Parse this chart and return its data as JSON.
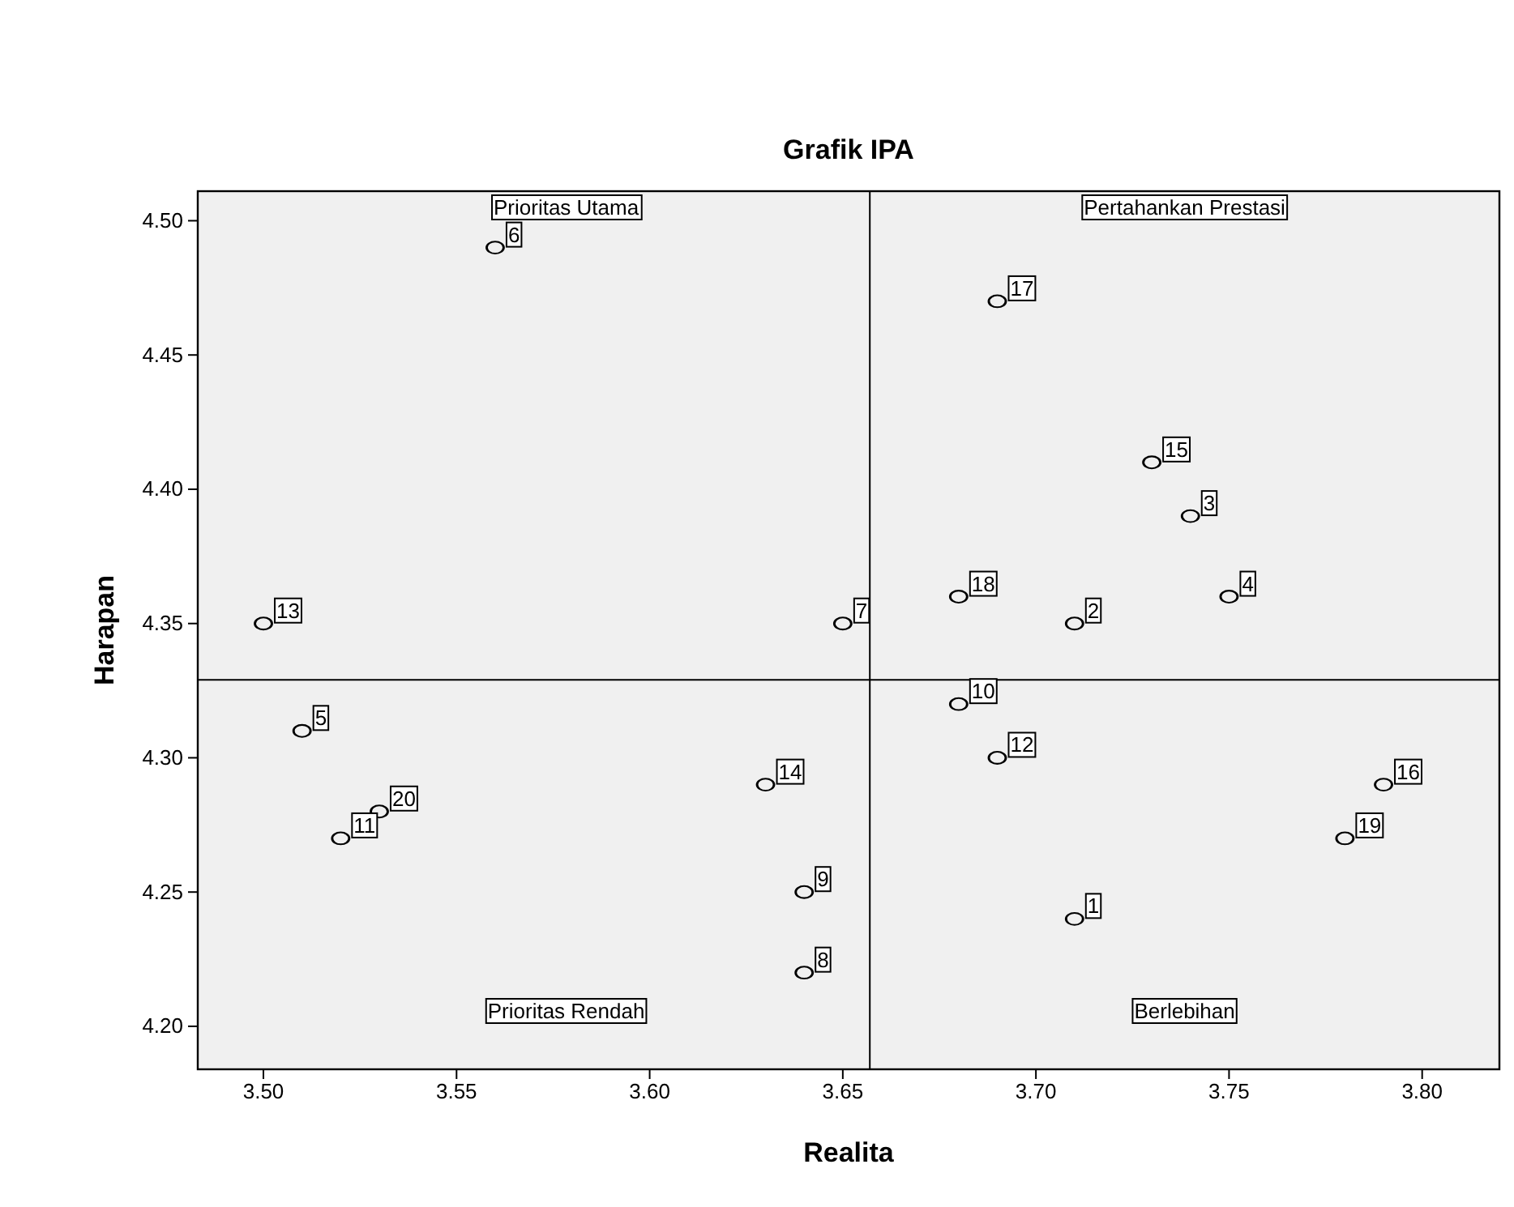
{
  "chart_data": {
    "type": "scatter",
    "title": "Grafik IPA",
    "xlabel": "Realita",
    "ylabel": "Harapan",
    "xlim": [
      3.483,
      3.82
    ],
    "ylim": [
      4.184,
      4.511
    ],
    "xticks": [
      {
        "value": 3.5,
        "label": "3.50"
      },
      {
        "value": 3.55,
        "label": "3.55"
      },
      {
        "value": 3.6,
        "label": "3.60"
      },
      {
        "value": 3.65,
        "label": "3.65"
      },
      {
        "value": 3.7,
        "label": "3.70"
      },
      {
        "value": 3.75,
        "label": "3.75"
      },
      {
        "value": 3.8,
        "label": "3.80"
      }
    ],
    "yticks": [
      {
        "value": 4.2,
        "label": "4.20"
      },
      {
        "value": 4.25,
        "label": "4.25"
      },
      {
        "value": 4.3,
        "label": "4.30"
      },
      {
        "value": 4.35,
        "label": "4.35"
      },
      {
        "value": 4.4,
        "label": "4.40"
      },
      {
        "value": 4.45,
        "label": "4.45"
      },
      {
        "value": 4.5,
        "label": "4.50"
      }
    ],
    "grid": false,
    "marker": "circle",
    "series": [
      {
        "color": "#000000",
        "x": [
          3.71,
          3.71,
          3.74,
          3.75,
          3.51,
          3.56,
          3.65,
          3.64,
          3.64,
          3.68,
          3.52,
          3.69,
          3.5,
          3.63,
          3.73,
          3.79,
          3.69,
          3.68,
          3.78,
          3.53
        ],
        "values": [
          4.24,
          4.35,
          4.39,
          4.36,
          4.31,
          4.49,
          4.35,
          4.22,
          4.25,
          4.32,
          4.27,
          4.3,
          4.35,
          4.29,
          4.41,
          4.29,
          4.47,
          4.36,
          4.27,
          4.28
        ]
      }
    ],
    "ref_lines": [
      {
        "axis": "x",
        "value": 3.657,
        "color": "#000000"
      },
      {
        "axis": "y",
        "value": 4.329,
        "color": "#000000"
      }
    ],
    "annotations": [
      {
        "text": "1",
        "x": 3.71,
        "y": 4.24
      },
      {
        "text": "2",
        "x": 3.71,
        "y": 4.35
      },
      {
        "text": "3",
        "x": 3.74,
        "y": 4.39
      },
      {
        "text": "4",
        "x": 3.75,
        "y": 4.36
      },
      {
        "text": "5",
        "x": 3.51,
        "y": 4.31
      },
      {
        "text": "6",
        "x": 3.56,
        "y": 4.49
      },
      {
        "text": "7",
        "x": 3.65,
        "y": 4.35
      },
      {
        "text": "8",
        "x": 3.64,
        "y": 4.22
      },
      {
        "text": "9",
        "x": 3.64,
        "y": 4.25
      },
      {
        "text": "10",
        "x": 3.68,
        "y": 4.32
      },
      {
        "text": "11",
        "x": 3.52,
        "y": 4.27
      },
      {
        "text": "12",
        "x": 3.69,
        "y": 4.3
      },
      {
        "text": "13",
        "x": 3.5,
        "y": 4.35
      },
      {
        "text": "14",
        "x": 3.63,
        "y": 4.29
      },
      {
        "text": "15",
        "x": 3.73,
        "y": 4.41
      },
      {
        "text": "16",
        "x": 3.79,
        "y": 4.29
      },
      {
        "text": "17",
        "x": 3.69,
        "y": 4.47
      },
      {
        "text": "18",
        "x": 3.68,
        "y": 4.36
      },
      {
        "text": "19",
        "x": 3.78,
        "y": 4.27
      },
      {
        "text": "20",
        "x": 3.53,
        "y": 4.28
      },
      "Prioritas Utama",
      "Pertahankan Prestasi",
      "Prioritas Rendah",
      "Berlebihan"
    ]
  }
}
